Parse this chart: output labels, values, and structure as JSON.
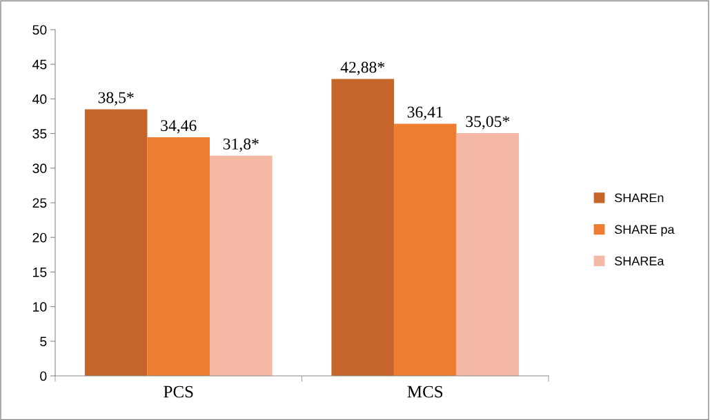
{
  "chart_data": {
    "type": "bar",
    "categories": [
      "PCS",
      "MCS"
    ],
    "series": [
      {
        "name": "SHAREn",
        "color": "#c5652a",
        "values": [
          38.5,
          42.88
        ],
        "value_labels": [
          "38,5*",
          "42,88*"
        ]
      },
      {
        "name": "SHARE pa",
        "color": "#ed7d31",
        "values": [
          34.46,
          36.41
        ],
        "value_labels": [
          "34,46",
          "36,41"
        ]
      },
      {
        "name": "SHAREa",
        "color": "#f4b8a4",
        "values": [
          31.8,
          35.05
        ],
        "value_labels": [
          "31,8*",
          "35,05*"
        ]
      }
    ],
    "ylim": [
      0,
      50
    ],
    "yticks": [
      0,
      5,
      10,
      15,
      20,
      25,
      30,
      35,
      40,
      45,
      50
    ],
    "grid": false,
    "legend": "right"
  }
}
